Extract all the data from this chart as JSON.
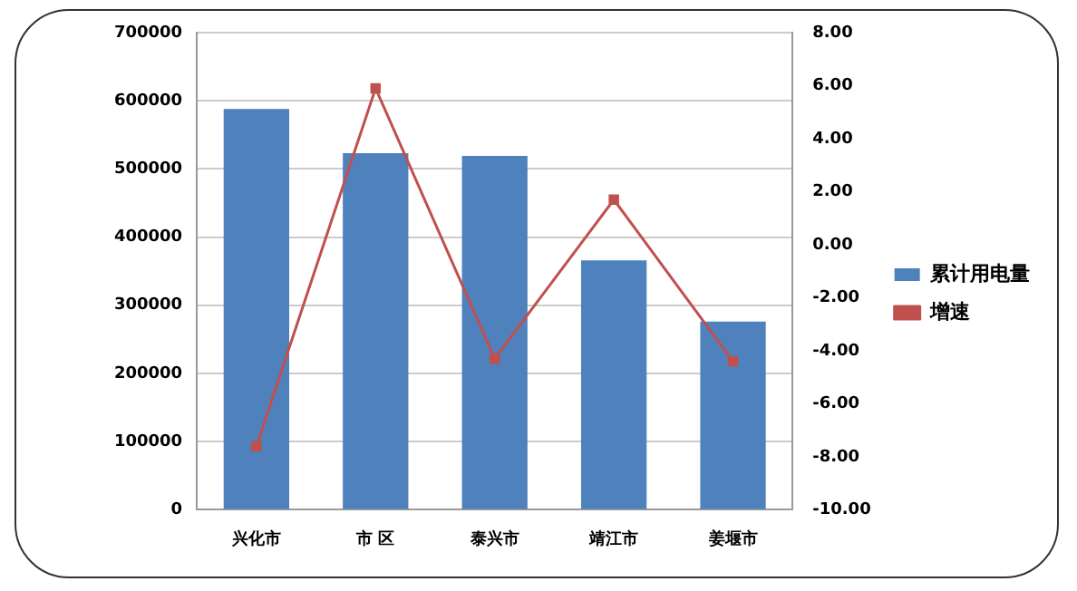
{
  "chart_data": {
    "type": "bar",
    "categories": [
      "兴化市",
      "市 区",
      "泰兴市",
      "靖江市",
      "姜堰市"
    ],
    "series": [
      {
        "name": "累计用电量",
        "color": "#4f81bd",
        "values": [
          588000,
          523000,
          519000,
          366000,
          276000
        ]
      },
      {
        "name": "增速",
        "type": "line",
        "axis": "y2",
        "color": "#c0504d",
        "values": [
          -7.6,
          5.9,
          -4.3,
          1.7,
          -4.4
        ]
      }
    ],
    "ylim": [
      0,
      700000
    ],
    "yticks": [
      0,
      100000,
      200000,
      300000,
      400000,
      500000,
      600000,
      700000
    ],
    "y2lim": [
      -10,
      8
    ],
    "y2ticks": [
      {
        "value": -10,
        "label": "-10.00"
      },
      {
        "value": -8,
        "label": "-8.00"
      },
      {
        "value": -6,
        "label": "-6.00"
      },
      {
        "value": -4,
        "label": "-4.00"
      },
      {
        "value": -2,
        "label": "-2.00"
      },
      {
        "value": 0,
        "label": "0.00"
      },
      {
        "value": 2,
        "label": "2.00"
      },
      {
        "value": 4,
        "label": "4.00"
      },
      {
        "value": 6,
        "label": "6.00"
      },
      {
        "value": 8,
        "label": "8.00"
      }
    ],
    "grid": "y",
    "legend": "right",
    "marker": "square"
  }
}
